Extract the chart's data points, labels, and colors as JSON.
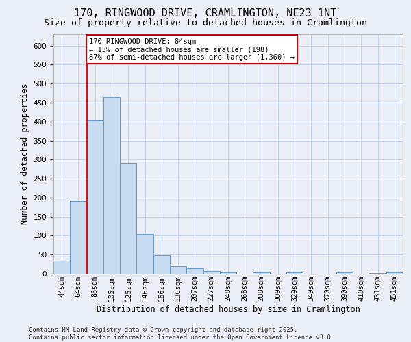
{
  "title1": "170, RINGWOOD DRIVE, CRAMLINGTON, NE23 1NT",
  "title2": "Size of property relative to detached houses in Cramlington",
  "xlabel": "Distribution of detached houses by size in Cramlington",
  "ylabel": "Number of detached properties",
  "footnote": "Contains HM Land Registry data © Crown copyright and database right 2025.\nContains public sector information licensed under the Open Government Licence v3.0.",
  "categories": [
    "44sqm",
    "64sqm",
    "85sqm",
    "105sqm",
    "125sqm",
    "146sqm",
    "166sqm",
    "186sqm",
    "207sqm",
    "227sqm",
    "248sqm",
    "268sqm",
    "288sqm",
    "309sqm",
    "329sqm",
    "349sqm",
    "370sqm",
    "390sqm",
    "410sqm",
    "431sqm",
    "451sqm"
  ],
  "values": [
    35,
    190,
    403,
    465,
    290,
    105,
    48,
    20,
    15,
    8,
    4,
    0,
    3,
    0,
    4,
    0,
    0,
    3,
    0,
    2,
    3
  ],
  "bar_color": "#c9ddf2",
  "bar_edge_color": "#6699cc",
  "red_line_index": 2,
  "annotation_text": "170 RINGWOOD DRIVE: 84sqm\n← 13% of detached houses are smaller (198)\n87% of semi-detached houses are larger (1,360) →",
  "annotation_box_color": "#ffffff",
  "annotation_box_edge": "#cc0000",
  "ylim": [
    0,
    630
  ],
  "yticks": [
    0,
    50,
    100,
    150,
    200,
    250,
    300,
    350,
    400,
    450,
    500,
    550,
    600
  ],
  "grid_color": "#c8d4e8",
  "background_color": "#eaeff7",
  "title1_fontsize": 11,
  "title2_fontsize": 9.5,
  "axis_label_fontsize": 8.5,
  "tick_fontsize": 7.5,
  "footnote_fontsize": 6.5
}
